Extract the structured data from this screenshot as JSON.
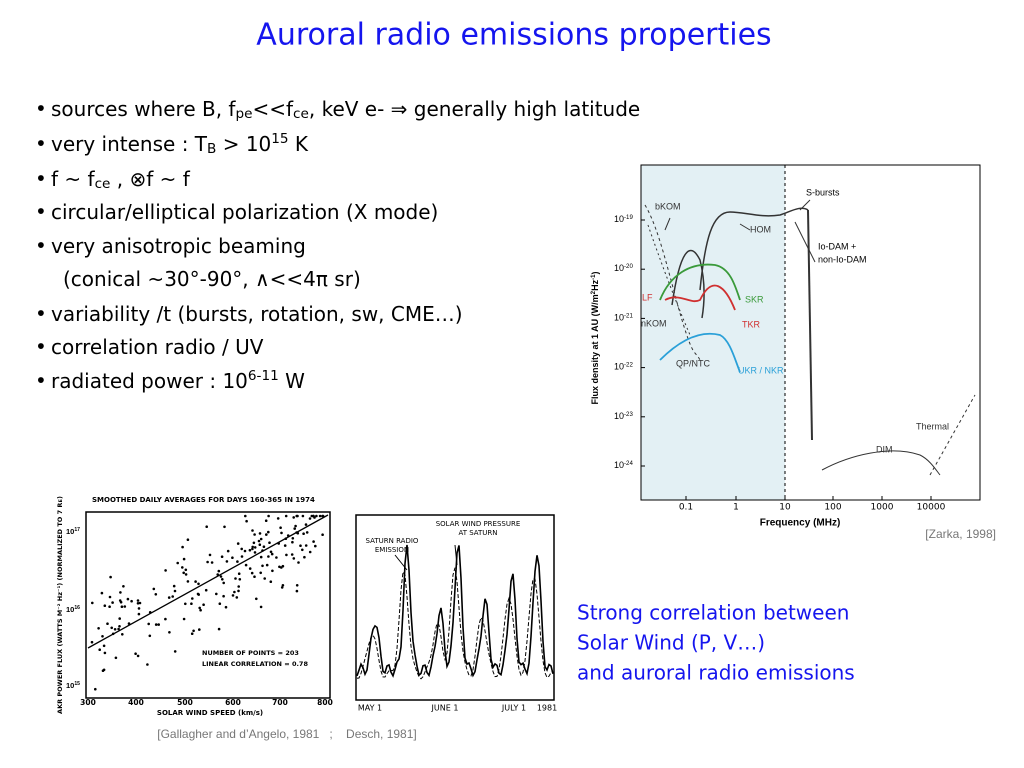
{
  "title": "Auroral radio emissions properties",
  "bullets": [
    {
      "marker": "•",
      "text": [
        "sources where B, f",
        {
          "sub": "pe"
        },
        "<<f",
        {
          "sub": "ce"
        },
        ", keV e-  ⇒  generally high latitude"
      ]
    },
    {
      "marker": "•",
      "text": [
        "very intense : T",
        {
          "sub": "B"
        },
        " > 10",
        {
          "sup": "15"
        },
        " K"
      ]
    },
    {
      "marker": "•",
      "text": [
        "f ~ f",
        {
          "sub": "ce"
        },
        " ,  ⊗f ~ f"
      ]
    },
    {
      "marker": "•",
      "text": [
        "circular/elliptical polarization (X mode)"
      ]
    },
    {
      "marker": "•",
      "text": [
        "very anisotropic beaming"
      ]
    },
    {
      "text": [
        "(conical ~30°-90°, ∧<<4π sr)"
      ]
    },
    {
      "marker": "•",
      "text": [
        "variability /t (bursts, rotation, sw, CME…)"
      ]
    },
    {
      "marker": "•",
      "text": [
        "correlation radio / UV"
      ]
    },
    {
      "marker": "•",
      "text": [
        "radiated power : 10",
        {
          "sup": "6-11"
        },
        " W"
      ]
    }
  ],
  "spectrum_figure": {
    "y_label": [
      "Flux density at 1 AU (W/m",
      {
        "sup": "2"
      },
      "Hz",
      {
        "sup": "-1"
      },
      ")"
    ],
    "x_label": "Frequency (MHz)",
    "x_tick_labels": [
      "0.1",
      "1",
      "10",
      "100",
      "1000",
      "10000"
    ],
    "y_tick_labels": [
      [
        "10",
        {
          "sup": "-19"
        }
      ],
      [
        "10",
        {
          "sup": "-20"
        }
      ],
      [
        "10",
        {
          "sup": "-21"
        }
      ],
      [
        "10",
        {
          "sup": "-22"
        }
      ],
      [
        "10",
        {
          "sup": "-23"
        }
      ],
      [
        "10",
        {
          "sup": "-24"
        }
      ]
    ],
    "labels": {
      "bkom": "bKOM",
      "hom": "HOM",
      "s_bursts": "S-bursts",
      "io_dam": "Io-DAM +",
      "non_io_dam": "non-Io-DAM",
      "lf": "LF",
      "skr": "SKR",
      "tkr": "TKR",
      "nkom": "nKOM",
      "qp_ntc": "QP/NTC",
      "ukr_nkr": "UKR / NKR",
      "thermal": "Thermal",
      "dim": "DIM"
    },
    "caption": "[Zarka, 1998]"
  },
  "scatter_figure": {
    "title": "SMOOTHED DAILY AVERAGES FOR DAYS 160-365 IN 1974",
    "y_label": "AKR POWER FLUX (WATTS M⁻² Hz⁻¹) (NORMALIZED TO 7 Rᴇ)",
    "x_label": "SOLAR WIND SPEED (km/s)",
    "x_tick_labels": [
      "300",
      "400",
      "500",
      "600",
      "700",
      "800"
    ],
    "y_tick_labels": [
      [
        "10",
        {
          "sup": "17"
        }
      ],
      [
        "10",
        {
          "sup": "16"
        }
      ],
      [
        "10",
        {
          "sup": "15"
        }
      ]
    ],
    "note_points": "NUMBER OF POINTS = 203",
    "note_correlation": "LINEAR CORRELATION = 0.78"
  },
  "time_figure": {
    "label_radio": [
      "SATURN RADIO",
      "EMISSION"
    ],
    "label_wind": [
      "SOLAR WIND PRESSURE",
      "AT SATURN"
    ],
    "x_tick_labels": [
      "MAY 1",
      "JUNE 1",
      "JULY 1",
      "1981"
    ]
  },
  "bottom_caption": "[Gallagher and d’Angelo, 1981   ;    Desch, 1981]",
  "conclusion": [
    "Strong correlation between",
    "Solar Wind (P, V…)",
    "and auroral radio emissions"
  ]
}
